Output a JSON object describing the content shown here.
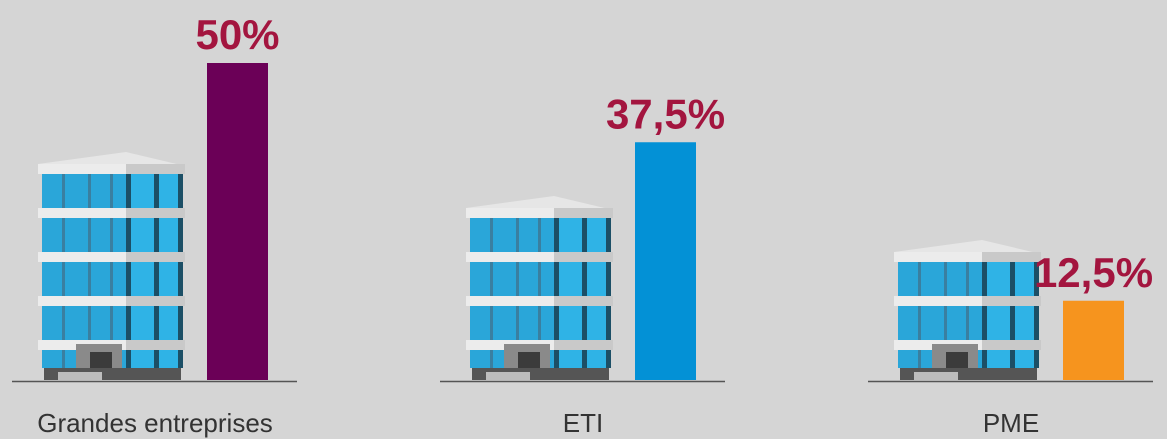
{
  "chart_data": {
    "type": "bar",
    "categories": [
      "Grandes entreprises",
      "ETI",
      "PME"
    ],
    "values": [
      50,
      37.5,
      12.5
    ],
    "value_labels": [
      "50%",
      "37,5%",
      "12,5%"
    ],
    "colors": [
      "#6b0057",
      "#0391d6",
      "#f6941e"
    ]
  }
}
